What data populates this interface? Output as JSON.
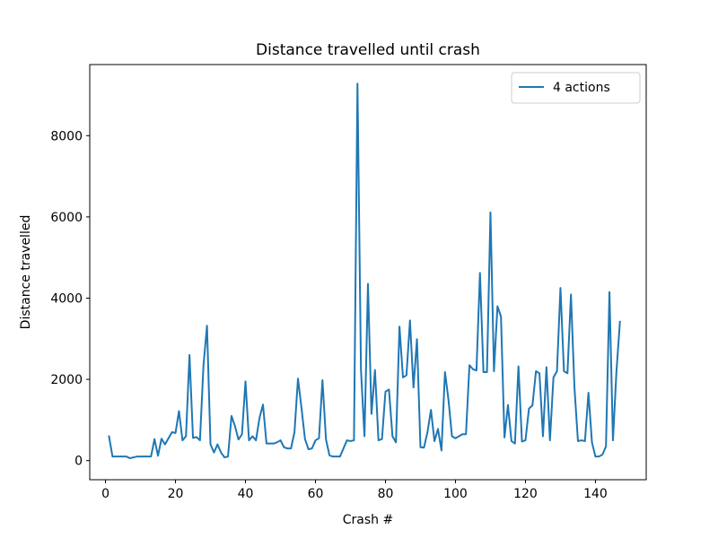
{
  "chart_data": {
    "type": "line",
    "title": "Distance travelled until crash",
    "xlabel": "Crash #",
    "ylabel": "Distance travelled",
    "xlim": [
      -4.5,
      154.5
    ],
    "ylim": [
      -470,
      9750
    ],
    "xticks": [
      0,
      20,
      40,
      60,
      80,
      100,
      120,
      140
    ],
    "yticks": [
      0,
      2000,
      4000,
      6000,
      8000
    ],
    "grid": false,
    "legend": {
      "placement": "top-right"
    },
    "series": [
      {
        "name": "4 actions",
        "color": "#1f77b4",
        "x": [
          1,
          2,
          3,
          4,
          5,
          6,
          7,
          8,
          9,
          10,
          11,
          12,
          13,
          14,
          15,
          16,
          17,
          18,
          19,
          20,
          21,
          22,
          23,
          24,
          25,
          26,
          27,
          28,
          29,
          30,
          31,
          32,
          33,
          34,
          35,
          36,
          37,
          38,
          39,
          40,
          41,
          42,
          43,
          44,
          45,
          46,
          47,
          48,
          49,
          50,
          51,
          52,
          53,
          54,
          55,
          56,
          57,
          58,
          59,
          60,
          61,
          62,
          63,
          64,
          65,
          66,
          67,
          68,
          69,
          70,
          71,
          72,
          73,
          74,
          75,
          76,
          77,
          78,
          79,
          80,
          81,
          82,
          83,
          84,
          85,
          86,
          87,
          88,
          89,
          90,
          91,
          92,
          93,
          94,
          95,
          96,
          97,
          98,
          99,
          100,
          101,
          102,
          103,
          104,
          105,
          106,
          107,
          108,
          109,
          110,
          111,
          112,
          113,
          114,
          115,
          116,
          117,
          118,
          119,
          120,
          121,
          122,
          123,
          124,
          125,
          126,
          127,
          128,
          129,
          130,
          131,
          132,
          133,
          134,
          135,
          136,
          137,
          138,
          139,
          140,
          141,
          142,
          143,
          144,
          145,
          146,
          147
        ],
        "y": [
          600,
          100,
          100,
          100,
          100,
          100,
          60,
          80,
          100,
          100,
          100,
          100,
          100,
          530,
          120,
          540,
          400,
          550,
          700,
          680,
          1220,
          500,
          600,
          2600,
          560,
          580,
          500,
          2350,
          3320,
          400,
          200,
          400,
          200,
          80,
          100,
          1100,
          850,
          520,
          650,
          1950,
          500,
          600,
          500,
          1050,
          1380,
          420,
          420,
          420,
          450,
          500,
          330,
          300,
          300,
          700,
          2020,
          1300,
          530,
          280,
          300,
          500,
          550,
          1980,
          520,
          130,
          100,
          100,
          100,
          300,
          500,
          480,
          500,
          9280,
          2230,
          600,
          4350,
          1150,
          2230,
          500,
          530,
          1700,
          1750,
          600,
          450,
          3300,
          2050,
          2100,
          3450,
          1800,
          2990,
          330,
          320,
          700,
          1250,
          480,
          780,
          250,
          2180,
          1500,
          600,
          550,
          600,
          650,
          650,
          2350,
          2250,
          2220,
          4620,
          2180,
          2180,
          6110,
          2200,
          3800,
          3550,
          570,
          1370,
          480,
          420,
          2320,
          470,
          500,
          1280,
          1360,
          2200,
          2150,
          600,
          2300,
          500,
          2050,
          2200,
          4250,
          2200,
          2150,
          4090,
          1800,
          480,
          500,
          480,
          1670,
          450,
          100,
          100,
          150,
          350,
          4150,
          500,
          2200,
          3420
        ]
      }
    ]
  }
}
